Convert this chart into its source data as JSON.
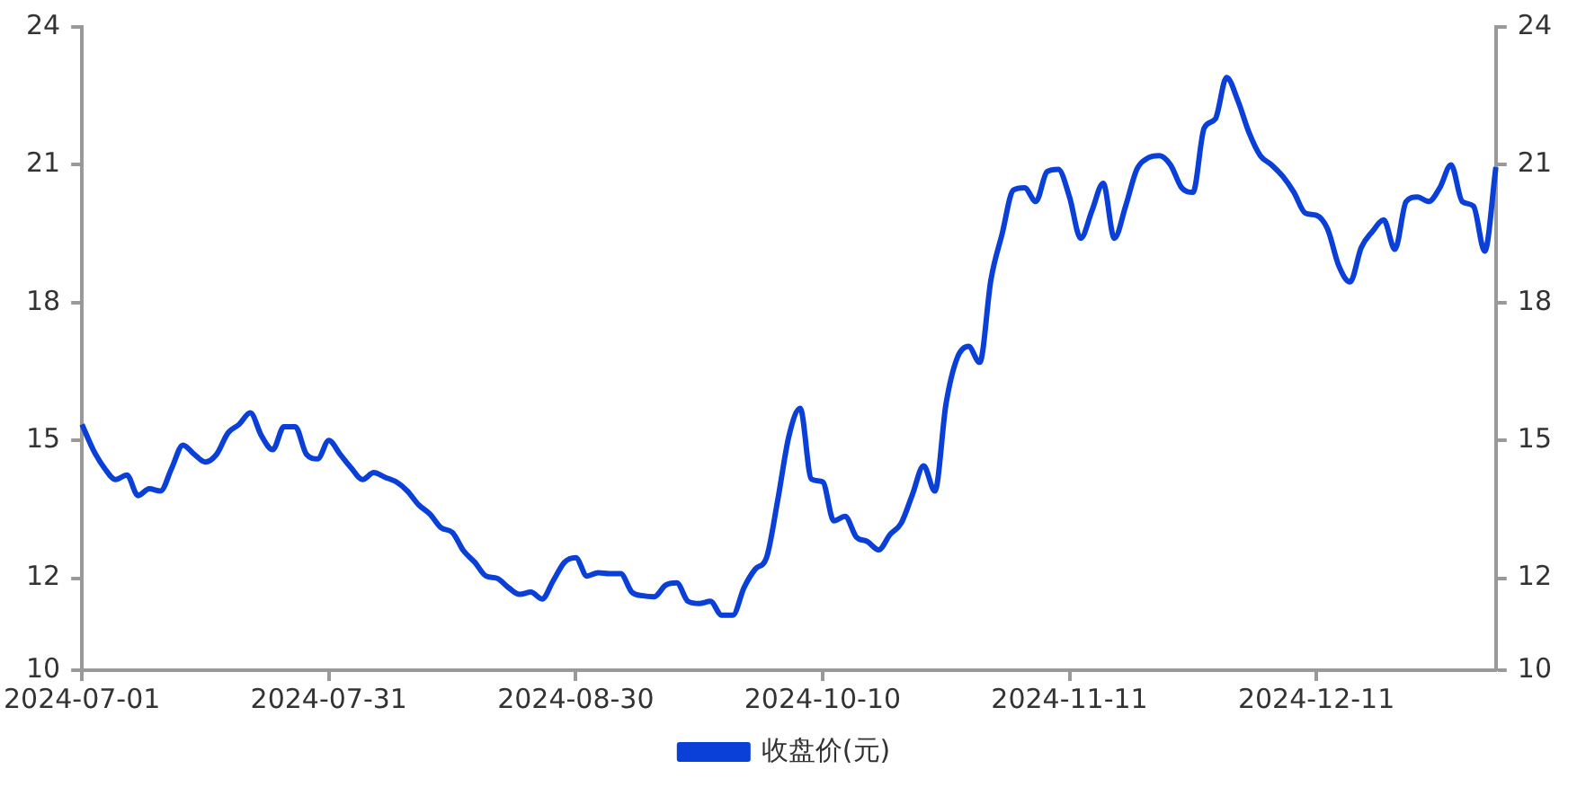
{
  "chart_data": {
    "type": "line",
    "categories": [
      "2024-07-01",
      null,
      null,
      null,
      null,
      null,
      null,
      null,
      null,
      null,
      null,
      null,
      null,
      null,
      null,
      null,
      null,
      null,
      null,
      null,
      null,
      null,
      "2024-07-31",
      null,
      null,
      null,
      null,
      null,
      null,
      null,
      null,
      null,
      null,
      null,
      null,
      null,
      null,
      null,
      null,
      null,
      null,
      null,
      null,
      null,
      "2024-08-30",
      null,
      null,
      null,
      null,
      null,
      null,
      null,
      null,
      null,
      null,
      null,
      null,
      null,
      null,
      null,
      null,
      null,
      null,
      null,
      null,
      null,
      "2024-10-10",
      null,
      null,
      null,
      null,
      null,
      null,
      null,
      null,
      null,
      null,
      null,
      null,
      null,
      null,
      null,
      null,
      null,
      null,
      null,
      null,
      null,
      "2024-11-11",
      null,
      null,
      null,
      null,
      null,
      null,
      null,
      null,
      null,
      null,
      null,
      null,
      null,
      null,
      null,
      null,
      null,
      null,
      null,
      null,
      null,
      "2024-12-11",
      null,
      null,
      null,
      null,
      null,
      null,
      null,
      null,
      null,
      null,
      null,
      null,
      null,
      null,
      null,
      null
    ],
    "series": [
      {
        "name": "收盘价(元)",
        "color": "#0a3fd8",
        "values": [
          15.35,
          14.8,
          14.4,
          14.15,
          14.25,
          13.8,
          13.95,
          13.9,
          14.4,
          14.9,
          14.7,
          14.53,
          14.7,
          15.16,
          15.35,
          15.6,
          15.1,
          14.8,
          15.3,
          15.3,
          14.7,
          14.6,
          15.0,
          14.7,
          14.4,
          14.15,
          14.3,
          14.2,
          14.1,
          13.9,
          13.6,
          13.4,
          13.1,
          13.0,
          12.6,
          12.35,
          12.05,
          12.0,
          11.8,
          11.65,
          11.7,
          11.55,
          11.95,
          12.35,
          12.45,
          12.05,
          12.12,
          12.1,
          12.1,
          11.7,
          11.62,
          11.6,
          11.85,
          11.9,
          11.5,
          11.45,
          11.5,
          11.2,
          11.2,
          11.8,
          12.2,
          12.45,
          13.7,
          15.1,
          15.7,
          14.16,
          14.1,
          13.25,
          13.35,
          12.9,
          12.8,
          12.62,
          12.95,
          13.2,
          13.82,
          14.45,
          13.9,
          15.8,
          16.8,
          17.05,
          16.7,
          18.5,
          19.5,
          20.45,
          20.5,
          20.2,
          20.85,
          20.9,
          20.3,
          19.4,
          20.0,
          20.6,
          19.4,
          20.1,
          20.9,
          21.15,
          21.2,
          21.0,
          20.5,
          20.4,
          21.8,
          22.0,
          22.9,
          22.4,
          21.7,
          21.2,
          21.0,
          20.75,
          20.4,
          19.95,
          19.9,
          19.6,
          18.8,
          18.45,
          19.2,
          19.55,
          19.8,
          19.16,
          20.2,
          20.3,
          20.2,
          20.5,
          21.0,
          20.2,
          20.1,
          19.12,
          20.95
        ]
      }
    ],
    "ylim": [
      10,
      24
    ],
    "yticks": [
      10,
      12,
      15,
      18,
      21,
      24
    ],
    "y2lim": [
      10,
      24
    ],
    "y2ticks": [
      10,
      12,
      15,
      18,
      21,
      24
    ],
    "grid": false,
    "legend": "bottom",
    "marker": "none",
    "line_style": "solid"
  }
}
